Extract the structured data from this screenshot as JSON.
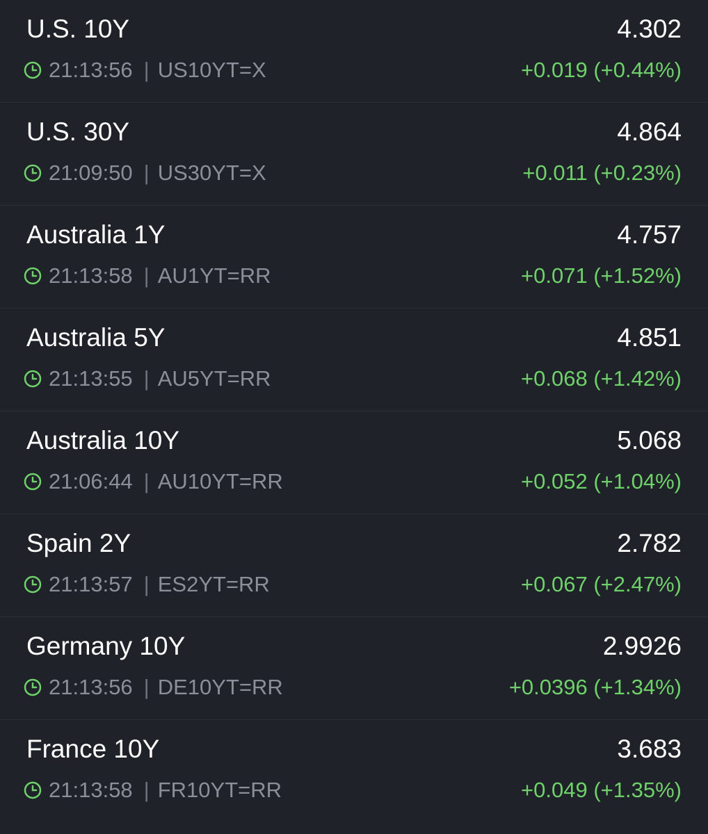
{
  "colors": {
    "background": "#1f2228",
    "primary_text": "#ffffff",
    "secondary_text": "#8a8f98",
    "positive": "#6fd16a",
    "clock_icon": "#6fd16a"
  },
  "quotes": [
    {
      "name": "U.S. 10Y",
      "price": "4.302",
      "time": "21:13:56",
      "separator": "|",
      "symbol": "US10YT=X",
      "change": "+0.019 (+0.44%)",
      "icon": "clock-icon"
    },
    {
      "name": "U.S. 30Y",
      "price": "4.864",
      "time": "21:09:50",
      "separator": "|",
      "symbol": "US30YT=X",
      "change": "+0.011 (+0.23%)",
      "icon": "clock-icon"
    },
    {
      "name": "Australia 1Y",
      "price": "4.757",
      "time": "21:13:58",
      "separator": "|",
      "symbol": "AU1YT=RR",
      "change": "+0.071 (+1.52%)",
      "icon": "clock-icon"
    },
    {
      "name": "Australia 5Y",
      "price": "4.851",
      "time": "21:13:55",
      "separator": "|",
      "symbol": "AU5YT=RR",
      "change": "+0.068 (+1.42%)",
      "icon": "clock-icon"
    },
    {
      "name": "Australia 10Y",
      "price": "5.068",
      "time": "21:06:44",
      "separator": "|",
      "symbol": "AU10YT=RR",
      "change": "+0.052 (+1.04%)",
      "icon": "clock-icon"
    },
    {
      "name": "Spain 2Y",
      "price": "2.782",
      "time": "21:13:57",
      "separator": "|",
      "symbol": "ES2YT=RR",
      "change": "+0.067 (+2.47%)",
      "icon": "clock-icon"
    },
    {
      "name": "Germany 10Y",
      "price": "2.9926",
      "time": "21:13:56",
      "separator": "|",
      "symbol": "DE10YT=RR",
      "change": "+0.0396 (+1.34%)",
      "icon": "clock-icon"
    },
    {
      "name": "France 10Y",
      "price": "3.683",
      "time": "21:13:58",
      "separator": "|",
      "symbol": "FR10YT=RR",
      "change": "+0.049 (+1.35%)",
      "icon": "clock-icon"
    }
  ]
}
